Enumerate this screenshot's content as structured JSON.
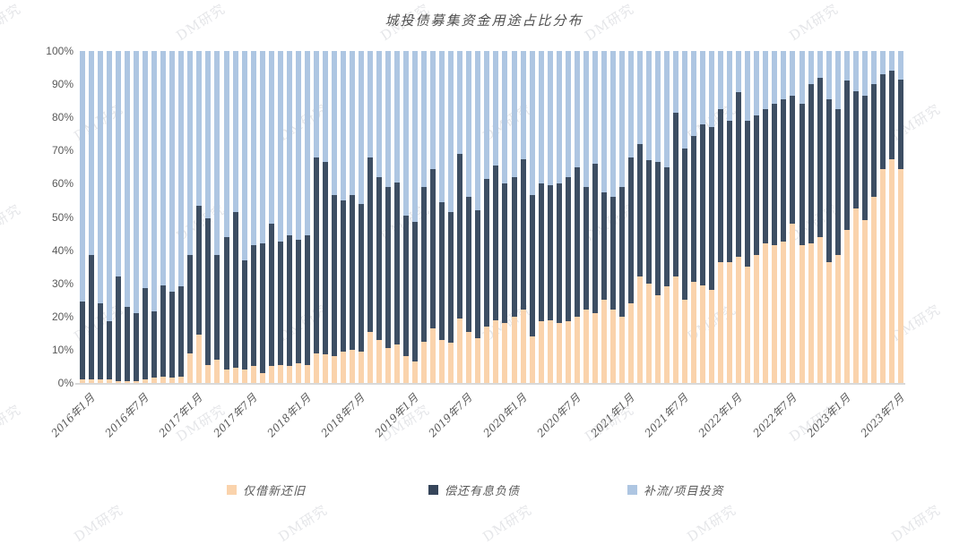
{
  "title": "城投债募集资金用途占比分布",
  "watermark_text": "DM研究",
  "legend": {
    "items": [
      {
        "label": "仅借新还旧",
        "color": "#fad3ac"
      },
      {
        "label": "偿还有息负债",
        "color": "#36455a"
      },
      {
        "label": "补流/项目投资",
        "color": "#aec6e2"
      }
    ]
  },
  "chart_data": {
    "type": "bar",
    "stacked": true,
    "unit": "%",
    "title": "城投债募集资金用途占比分布",
    "grid": false,
    "legend_position": "bottom",
    "ylim": [
      0,
      100
    ],
    "y_ticks": [
      "0%",
      "10%",
      "20%",
      "30%",
      "40%",
      "50%",
      "60%",
      "70%",
      "80%",
      "90%",
      "100%"
    ],
    "x_tick_every": 6,
    "x_tick_labels": [
      "2016年1月",
      "2016年7月",
      "2017年1月",
      "2017年7月",
      "2018年1月",
      "2018年7月",
      "2019年1月",
      "2019年7月",
      "2020年1月",
      "2020年7月",
      "2021年1月",
      "2021年7月",
      "2022年1月",
      "2022年7月",
      "2023年1月",
      "2023年7月"
    ],
    "categories": [
      "2016年1月",
      "2016年2月",
      "2016年3月",
      "2016年4月",
      "2016年5月",
      "2016年6月",
      "2016年7月",
      "2016年8月",
      "2016年9月",
      "2016年10月",
      "2016年11月",
      "2016年12月",
      "2017年1月",
      "2017年2月",
      "2017年3月",
      "2017年4月",
      "2017年5月",
      "2017年6月",
      "2017年7月",
      "2017年8月",
      "2017年9月",
      "2017年10月",
      "2017年11月",
      "2017年12月",
      "2018年1月",
      "2018年2月",
      "2018年3月",
      "2018年4月",
      "2018年5月",
      "2018年6月",
      "2018年7月",
      "2018年8月",
      "2018年9月",
      "2018年10月",
      "2018年11月",
      "2018年12月",
      "2019年1月",
      "2019年2月",
      "2019年3月",
      "2019年4月",
      "2019年5月",
      "2019年6月",
      "2019年7月",
      "2019年8月",
      "2019年9月",
      "2019年10月",
      "2019年11月",
      "2019年12月",
      "2020年1月",
      "2020年2月",
      "2020年3月",
      "2020年4月",
      "2020年5月",
      "2020年6月",
      "2020年7月",
      "2020年8月",
      "2020年9月",
      "2020年10月",
      "2020年11月",
      "2020年12月",
      "2021年1月",
      "2021年2月",
      "2021年3月",
      "2021年4月",
      "2021年5月",
      "2021年6月",
      "2021年7月",
      "2021年8月",
      "2021年9月",
      "2021年10月",
      "2021年11月",
      "2021年12月",
      "2022年1月",
      "2022年2月",
      "2022年3月",
      "2022年4月",
      "2022年5月",
      "2022年6月",
      "2022年7月",
      "2022年8月",
      "2022年9月",
      "2022年10月",
      "2022年11月",
      "2022年12月",
      "2023年1月",
      "2023年2月",
      "2023年3月",
      "2023年4月",
      "2023年5月",
      "2023年6月",
      "2023年7月",
      "2023年8月"
    ],
    "series": [
      {
        "name": "仅借新还旧",
        "color": "#fad3ac",
        "values": [
          1,
          1,
          1,
          1,
          0.5,
          0.5,
          0.5,
          1,
          1.5,
          2,
          1.5,
          2,
          9,
          14.5,
          5.5,
          7,
          4,
          4.5,
          4,
          5,
          3,
          5,
          5.5,
          5,
          6,
          5.5,
          9,
          8.5,
          8,
          9.5,
          10,
          9.5,
          15.5,
          13,
          10.5,
          11.5,
          8,
          6.5,
          12.5,
          16.5,
          13,
          12,
          19.5,
          15.5,
          13.5,
          17,
          19,
          18,
          20,
          22,
          14,
          18.5,
          19,
          18,
          18.5,
          20,
          22,
          21,
          25,
          22,
          20,
          24,
          32,
          30,
          26.5,
          29,
          32,
          25,
          30.5,
          29.5,
          28,
          36.5,
          36.5,
          38,
          35,
          38.5,
          42,
          41.5,
          42.5,
          48,
          41.5,
          42,
          44,
          36.5,
          38.5,
          46,
          52.5,
          49,
          56,
          64.5,
          67.5,
          64.5
        ]
      },
      {
        "name": "偿还有息负债",
        "color": "#3d4e63",
        "values": [
          23.5,
          37.5,
          23,
          17.5,
          31.5,
          22.5,
          20.5,
          27.5,
          20,
          27.5,
          26,
          27,
          29.5,
          39,
          44,
          31.5,
          40,
          47,
          33,
          36.5,
          39,
          43,
          37,
          39.5,
          37,
          39,
          59,
          58,
          48.5,
          45.5,
          46.5,
          44.5,
          52.5,
          49,
          48.5,
          49,
          42.5,
          42,
          46.5,
          48,
          41.5,
          39.5,
          49.5,
          40.5,
          38.5,
          44.5,
          46.5,
          42,
          42,
          45.5,
          42.5,
          41.5,
          40.5,
          42,
          43.5,
          45,
          37,
          45,
          32.5,
          34,
          39,
          44,
          40,
          37,
          40,
          36,
          49.5,
          45.5,
          44,
          48.5,
          49,
          46,
          42.5,
          49.5,
          44,
          42,
          40.5,
          42.5,
          43,
          38.5,
          42.5,
          48,
          48,
          49,
          44,
          45,
          35.5,
          37.5,
          34,
          28.5,
          26.5,
          27
        ]
      },
      {
        "name": "补流/项目投资",
        "color": "#aec6e2",
        "values": [
          75.5,
          61.5,
          76,
          81.5,
          68,
          77,
          79,
          71.5,
          78.5,
          70.5,
          72.5,
          71,
          61.5,
          46.5,
          50.5,
          61.5,
          56,
          48.5,
          63,
          58.5,
          58,
          52,
          57.5,
          55.5,
          57,
          55.5,
          32,
          33.5,
          43.5,
          45,
          43.5,
          46,
          32,
          38,
          41,
          39.5,
          49.5,
          51.5,
          41,
          35.5,
          45.5,
          48.5,
          31,
          44,
          48,
          38.5,
          34.5,
          40,
          38,
          32.5,
          43.5,
          40,
          40.5,
          40,
          38,
          35,
          41,
          34,
          42.5,
          44,
          41,
          32,
          28,
          33,
          33.5,
          35,
          18.5,
          29.5,
          25.5,
          22,
          23,
          17.5,
          21,
          12.5,
          21,
          19.5,
          17.5,
          16,
          14.5,
          13.5,
          16,
          10,
          8,
          14.5,
          17.5,
          9,
          12,
          13.5,
          10,
          7,
          6,
          8.5
        ]
      }
    ]
  }
}
